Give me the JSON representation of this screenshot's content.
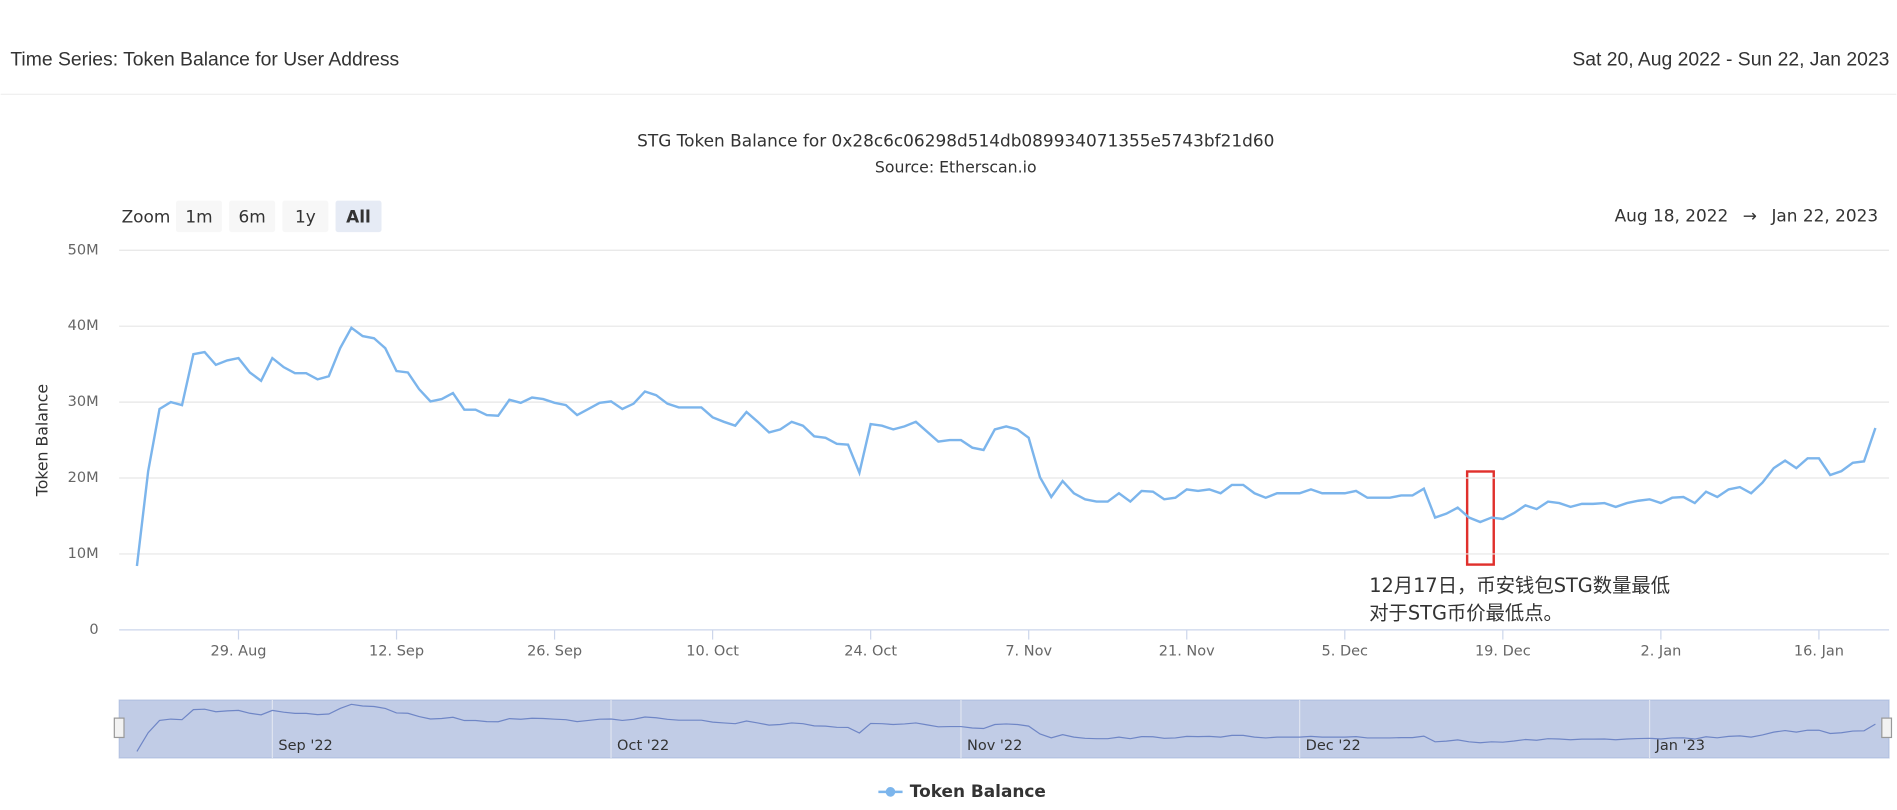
{
  "header": {
    "title": "Time Series: Token Balance for User Address",
    "date_range": "Sat 20, Aug 2022 - Sun 22, Jan 2023"
  },
  "zoom": {
    "label": "Zoom",
    "buttons": [
      "1m",
      "6m",
      "1y",
      "All"
    ],
    "selected": "All"
  },
  "range": {
    "from": "Aug 18, 2022",
    "arrow": "→",
    "to": "Jan 22, 2023"
  },
  "annotation": {
    "lines": [
      "12月17日，币安钱包STG数量最低",
      "对于STG币价最低点。"
    ],
    "color": "#e0302c"
  },
  "chart_data": {
    "type": "line",
    "title": "STG Token Balance for 0x28c6c06298d514db089934071355e5743bf21d60",
    "subtitle": "Source: Etherscan.io",
    "y_label": "Token Balance",
    "grid": true,
    "xlim": [
      "2022-08-18",
      "2023-01-22"
    ],
    "xticks": [
      {
        "value": "2022-08-29",
        "label": "29. Aug"
      },
      {
        "value": "2022-09-12",
        "label": "12. Sep"
      },
      {
        "value": "2022-09-26",
        "label": "26. Sep"
      },
      {
        "value": "2022-10-10",
        "label": "10. Oct"
      },
      {
        "value": "2022-10-24",
        "label": "24. Oct"
      },
      {
        "value": "2022-11-07",
        "label": "7. Nov"
      },
      {
        "value": "2022-11-21",
        "label": "21. Nov"
      },
      {
        "value": "2022-12-05",
        "label": "5. Dec"
      },
      {
        "value": "2022-12-19",
        "label": "19. Dec"
      },
      {
        "value": "2023-01-02",
        "label": "2. Jan"
      },
      {
        "value": "2023-01-16",
        "label": "16. Jan"
      }
    ],
    "ylim": [
      0,
      50000000
    ],
    "yticks": [
      0,
      {
        "value": 10000000,
        "label": "10M"
      },
      {
        "value": 20000000,
        "label": "20M"
      },
      {
        "value": 30000000,
        "label": "30M"
      },
      {
        "value": 40000000,
        "label": "40M"
      },
      {
        "value": 50000000,
        "label": "50M"
      }
    ],
    "navigator_ticks": [
      {
        "value": "2022-09-01",
        "label": "Sep '22"
      },
      {
        "value": "2022-10-01",
        "label": "Oct '22"
      },
      {
        "value": "2022-11-01",
        "label": "Nov '22"
      },
      {
        "value": "2022-12-01",
        "label": "Dec '22"
      },
      {
        "value": "2023-01-01",
        "label": "Jan '23"
      }
    ],
    "x": [
      "2022-08-20",
      "2022-08-21",
      "2022-08-22",
      "2022-08-23",
      "2022-08-24",
      "2022-08-25",
      "2022-08-26",
      "2022-08-27",
      "2022-08-28",
      "2022-08-29",
      "2022-08-30",
      "2022-08-31",
      "2022-09-01",
      "2022-09-02",
      "2022-09-03",
      "2022-09-04",
      "2022-09-05",
      "2022-09-06",
      "2022-09-07",
      "2022-09-08",
      "2022-09-09",
      "2022-09-10",
      "2022-09-11",
      "2022-09-12",
      "2022-09-13",
      "2022-09-14",
      "2022-09-15",
      "2022-09-16",
      "2022-09-17",
      "2022-09-18",
      "2022-09-19",
      "2022-09-20",
      "2022-09-21",
      "2022-09-22",
      "2022-09-23",
      "2022-09-24",
      "2022-09-25",
      "2022-09-26",
      "2022-09-27",
      "2022-09-28",
      "2022-09-29",
      "2022-09-30",
      "2022-10-01",
      "2022-10-02",
      "2022-10-03",
      "2022-10-04",
      "2022-10-05",
      "2022-10-06",
      "2022-10-07",
      "2022-10-08",
      "2022-10-09",
      "2022-10-10",
      "2022-10-11",
      "2022-10-12",
      "2022-10-13",
      "2022-10-14",
      "2022-10-15",
      "2022-10-16",
      "2022-10-17",
      "2022-10-18",
      "2022-10-19",
      "2022-10-20",
      "2022-10-21",
      "2022-10-22",
      "2022-10-23",
      "2022-10-24",
      "2022-10-25",
      "2022-10-26",
      "2022-10-27",
      "2022-10-28",
      "2022-10-29",
      "2022-10-30",
      "2022-10-31",
      "2022-11-01",
      "2022-11-02",
      "2022-11-03",
      "2022-11-04",
      "2022-11-05",
      "2022-11-06",
      "2022-11-07",
      "2022-11-08",
      "2022-11-09",
      "2022-11-10",
      "2022-11-11",
      "2022-11-12",
      "2022-11-13",
      "2022-11-14",
      "2022-11-15",
      "2022-11-16",
      "2022-11-17",
      "2022-11-18",
      "2022-11-19",
      "2022-11-20",
      "2022-11-21",
      "2022-11-22",
      "2022-11-23",
      "2022-11-24",
      "2022-11-25",
      "2022-11-26",
      "2022-11-27",
      "2022-11-28",
      "2022-11-29",
      "2022-11-30",
      "2022-12-01",
      "2022-12-02",
      "2022-12-03",
      "2022-12-04",
      "2022-12-05",
      "2022-12-06",
      "2022-12-07",
      "2022-12-08",
      "2022-12-09",
      "2022-12-10",
      "2022-12-11",
      "2022-12-12",
      "2022-12-13",
      "2022-12-14",
      "2022-12-15",
      "2022-12-16",
      "2022-12-17",
      "2022-12-18",
      "2022-12-19",
      "2022-12-20",
      "2022-12-21",
      "2022-12-22",
      "2022-12-23",
      "2022-12-24",
      "2022-12-25",
      "2022-12-26",
      "2022-12-27",
      "2022-12-28",
      "2022-12-29",
      "2022-12-30",
      "2022-12-31",
      "2023-01-01",
      "2023-01-02",
      "2023-01-03",
      "2023-01-04",
      "2023-01-05",
      "2023-01-06",
      "2023-01-07",
      "2023-01-08",
      "2023-01-09",
      "2023-01-10",
      "2023-01-11",
      "2023-01-12",
      "2023-01-13",
      "2023-01-14",
      "2023-01-15",
      "2023-01-16",
      "2023-01-17",
      "2023-01-18",
      "2023-01-19",
      "2023-01-20",
      "2023-01-21"
    ],
    "series": [
      {
        "name": "Token Balance",
        "color": "#7cb5ec",
        "values": [
          8400000,
          20900000,
          29100000,
          30000000,
          29600000,
          36300000,
          36600000,
          34900000,
          35500000,
          35800000,
          33900000,
          32800000,
          35800000,
          34600000,
          33800000,
          33800000,
          33000000,
          33400000,
          37100000,
          39800000,
          38700000,
          38400000,
          37100000,
          34100000,
          33900000,
          31700000,
          30100000,
          30400000,
          31200000,
          29000000,
          29000000,
          28300000,
          28200000,
          30300000,
          29900000,
          30600000,
          30400000,
          29900000,
          29600000,
          28300000,
          29100000,
          29900000,
          30100000,
          29100000,
          29800000,
          31400000,
          30900000,
          29800000,
          29300000,
          29300000,
          29300000,
          28000000,
          27400000,
          26900000,
          28700000,
          27400000,
          26000000,
          26400000,
          27400000,
          26900000,
          25500000,
          25300000,
          24500000,
          24400000,
          20700000,
          27100000,
          26900000,
          26400000,
          26800000,
          27400000,
          26100000,
          24800000,
          25000000,
          25000000,
          24000000,
          23700000,
          26400000,
          26800000,
          26400000,
          25300000,
          20100000,
          17500000,
          19600000,
          18000000,
          17200000,
          16900000,
          16900000,
          18000000,
          16900000,
          18300000,
          18200000,
          17200000,
          17400000,
          18500000,
          18300000,
          18500000,
          18000000,
          19100000,
          19100000,
          18000000,
          17400000,
          18000000,
          18000000,
          18000000,
          18500000,
          18000000,
          18000000,
          18000000,
          18300000,
          17400000,
          17400000,
          17400000,
          17700000,
          17700000,
          18600000,
          14800000,
          15300000,
          16100000,
          14800000,
          14200000,
          14800000,
          14600000,
          15400000,
          16400000,
          15900000,
          16900000,
          16700000,
          16200000,
          16600000,
          16600000,
          16700000,
          16200000,
          16700000,
          17000000,
          17200000,
          16700000,
          17400000,
          17500000,
          16700000,
          18200000,
          17500000,
          18500000,
          18800000,
          18000000,
          19400000,
          21300000,
          22300000,
          21300000,
          22600000,
          22600000,
          20400000,
          20900000,
          22000000,
          22200000,
          26600000
        ]
      }
    ]
  }
}
